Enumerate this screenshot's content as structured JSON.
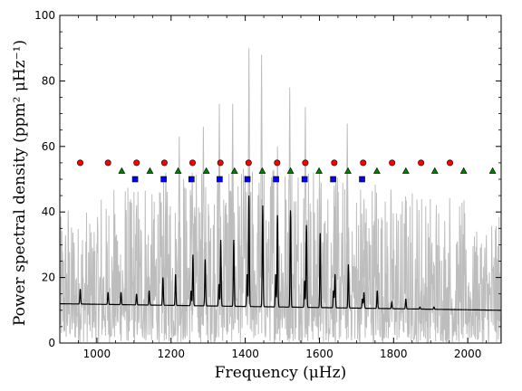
{
  "chart_data": {
    "type": "line",
    "xlabel": "Frequency (μHz)",
    "ylabel": "Power spectral density (ppm² μHz⁻¹)",
    "xlim": [
      900,
      2090
    ],
    "ylim": [
      0,
      100
    ],
    "xticks": [
      1000,
      1200,
      1400,
      1600,
      1800,
      2000
    ],
    "yticks": [
      0,
      20,
      40,
      60,
      80,
      100
    ],
    "grid": false,
    "legend": "none",
    "background": {
      "floor_start": 12.0,
      "floor_end": 10.0,
      "noise_mean": 14,
      "noise_envelope_peak": 42,
      "noise_envelope_center": 1440
    },
    "raw_spikes": [
      {
        "x": 1287,
        "y": 66
      },
      {
        "x": 1330,
        "y": 73
      },
      {
        "x": 1366,
        "y": 73
      },
      {
        "x": 1410,
        "y": 90
      },
      {
        "x": 1444,
        "y": 88
      },
      {
        "x": 1520,
        "y": 78
      },
      {
        "x": 1487,
        "y": 60
      },
      {
        "x": 1562,
        "y": 72
      },
      {
        "x": 1600,
        "y": 52
      },
      {
        "x": 1675,
        "y": 67
      },
      {
        "x": 1222,
        "y": 63
      },
      {
        "x": 1186,
        "y": 52
      },
      {
        "x": 1257,
        "y": 52
      },
      {
        "x": 1720,
        "y": 44
      },
      {
        "x": 1640,
        "y": 48
      }
    ],
    "smoothed_peaks": [
      {
        "x": 955,
        "y": 16.5
      },
      {
        "x": 1030,
        "y": 15.5
      },
      {
        "x": 1065,
        "y": 15.5
      },
      {
        "x": 1107,
        "y": 15.0
      },
      {
        "x": 1141,
        "y": 16.0
      },
      {
        "x": 1178,
        "y": 20.0
      },
      {
        "x": 1212,
        "y": 21.0
      },
      {
        "x": 1254,
        "y": 16.0
      },
      {
        "x": 1259,
        "y": 27.0
      },
      {
        "x": 1292,
        "y": 25.5
      },
      {
        "x": 1329,
        "y": 18.0
      },
      {
        "x": 1334,
        "y": 31.5
      },
      {
        "x": 1369,
        "y": 31.5
      },
      {
        "x": 1405,
        "y": 21.0
      },
      {
        "x": 1410,
        "y": 45.0
      },
      {
        "x": 1447,
        "y": 42.0
      },
      {
        "x": 1482,
        "y": 21.0
      },
      {
        "x": 1487,
        "y": 39.0
      },
      {
        "x": 1522,
        "y": 40.5
      },
      {
        "x": 1560,
        "y": 19.0
      },
      {
        "x": 1565,
        "y": 36.0
      },
      {
        "x": 1602,
        "y": 33.5
      },
      {
        "x": 1638,
        "y": 16.0
      },
      {
        "x": 1642,
        "y": 21.0
      },
      {
        "x": 1678,
        "y": 24.0
      },
      {
        "x": 1716,
        "y": 13.5
      },
      {
        "x": 1720,
        "y": 15.5
      },
      {
        "x": 1756,
        "y": 16.0
      },
      {
        "x": 1795,
        "y": 12.5
      },
      {
        "x": 1833,
        "y": 13.5
      },
      {
        "x": 1871,
        "y": 11.0
      },
      {
        "x": 1909,
        "y": 11.0
      }
    ],
    "series": [
      {
        "marker": "circle",
        "color": "#ff0000",
        "x": [
          955,
          1030,
          1107,
          1182,
          1258,
          1333,
          1409,
          1486,
          1562,
          1640,
          1718,
          1796,
          1874,
          1952
        ],
        "y": [
          55,
          55,
          55,
          55,
          55,
          55,
          55,
          55,
          55,
          55,
          55,
          55,
          55,
          55
        ]
      },
      {
        "marker": "triangle",
        "color": "#008000",
        "x": [
          1067,
          1143,
          1219,
          1295,
          1371,
          1446,
          1522,
          1599,
          1677,
          1755,
          1833,
          1911,
          1989,
          2067
        ],
        "y": [
          52.5,
          52.5,
          52.5,
          52.5,
          52.5,
          52.5,
          52.5,
          52.5,
          52.5,
          52.5,
          52.5,
          52.5,
          52.5,
          52.5
        ]
      },
      {
        "marker": "square",
        "color": "#0000ff",
        "x": [
          1103,
          1180,
          1255,
          1331,
          1406,
          1483,
          1560,
          1637,
          1715
        ],
        "y": [
          50,
          50,
          50,
          50,
          50,
          50,
          50,
          50,
          50
        ]
      }
    ]
  }
}
